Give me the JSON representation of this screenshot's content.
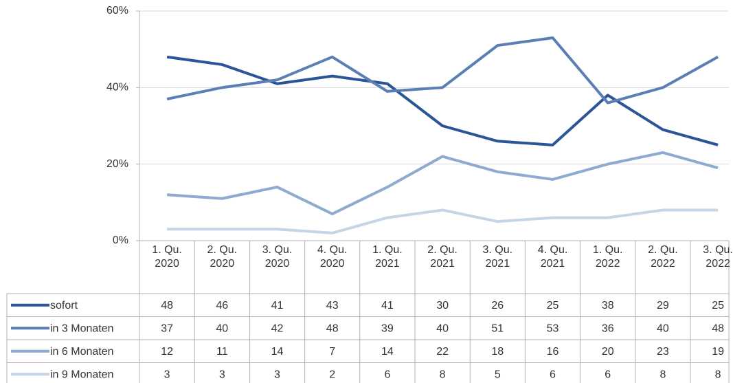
{
  "chart_data": {
    "type": "line",
    "categories": [
      "1. Qu. 2020",
      "2. Qu. 2020",
      "3. Qu. 2020",
      "4. Qu. 2020",
      "1. Qu. 2021",
      "2. Qu. 2021",
      "3. Qu. 2021",
      "4. Qu. 2021",
      "1. Qu. 2022",
      "2. Qu. 2022",
      "3. Qu. 2022"
    ],
    "series": [
      {
        "name": "sofort",
        "color": "#2a5597",
        "values": [
          48,
          46,
          41,
          43,
          41,
          30,
          26,
          25,
          38,
          29,
          25
        ]
      },
      {
        "name": "in 3 Monaten",
        "color": "#5b7fb4",
        "values": [
          37,
          40,
          42,
          48,
          39,
          40,
          51,
          53,
          36,
          40,
          48
        ]
      },
      {
        "name": "in 6 Monaten",
        "color": "#8eaad0",
        "values": [
          12,
          11,
          14,
          7,
          14,
          22,
          18,
          16,
          20,
          23,
          19
        ]
      },
      {
        "name": "in 9 Monaten",
        "color": "#c6d4e7",
        "values": [
          3,
          3,
          3,
          2,
          6,
          8,
          5,
          6,
          6,
          8,
          8
        ]
      }
    ],
    "ylim": [
      0,
      60
    ],
    "yticks": [
      {
        "value": 0,
        "label": "0%"
      },
      {
        "value": 20,
        "label": "20%"
      },
      {
        "value": 40,
        "label": "40%"
      },
      {
        "value": 60,
        "label": "60%"
      }
    ],
    "grid": true
  }
}
